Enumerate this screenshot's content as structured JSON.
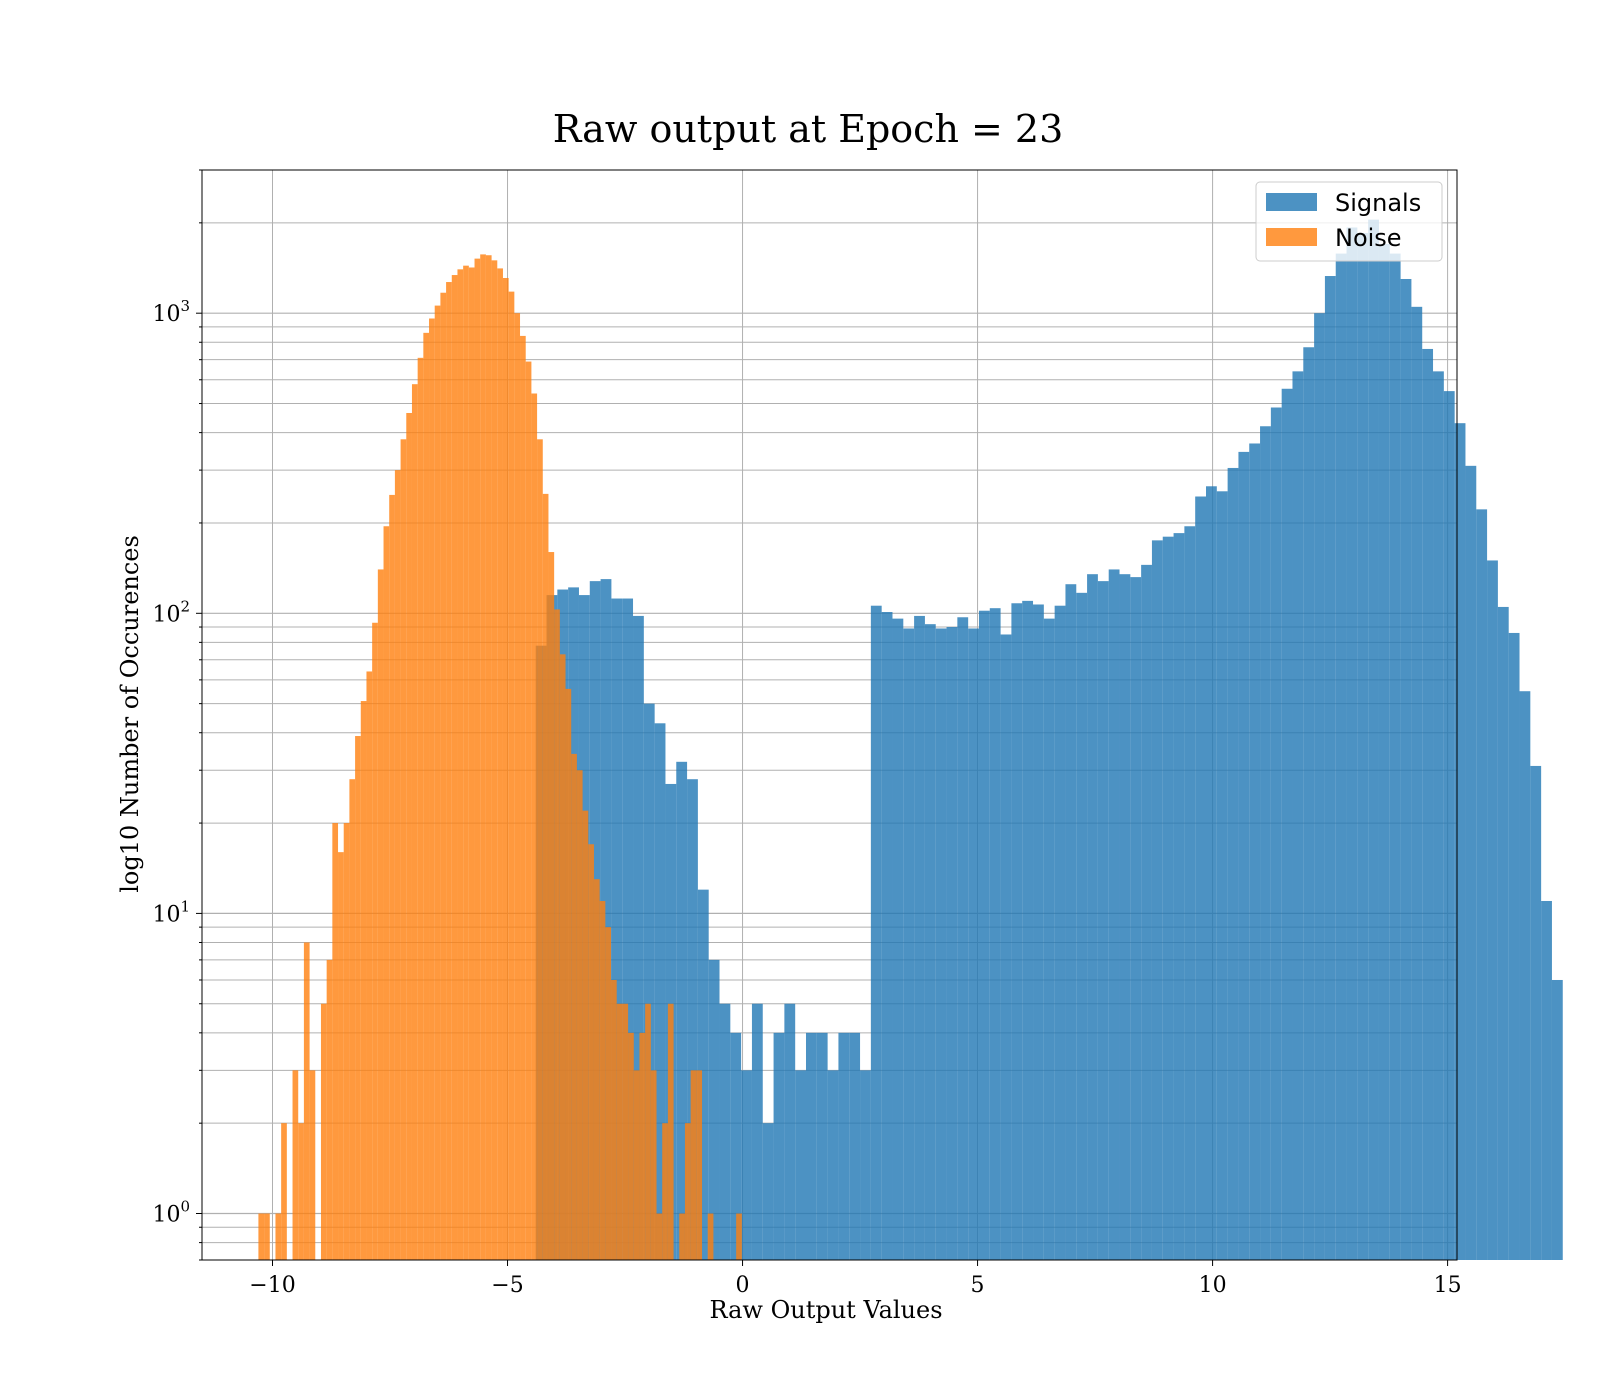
{
  "chart_data": {
    "type": "bar",
    "title": "Raw output at Epoch = 23",
    "xlabel": "Raw Output Values",
    "ylabel": "log10 Number of Occurences",
    "xlim": [
      -11.5,
      15.2
    ],
    "ylim": [
      0.7,
      3000
    ],
    "yscale": "log",
    "grid": true,
    "legend": "top-right",
    "x_ticks": [
      {
        "value": -10,
        "label": "−10"
      },
      {
        "value": -5,
        "label": "−5"
      },
      {
        "value": 0,
        "label": "0"
      },
      {
        "value": 5,
        "label": "5"
      },
      {
        "value": 10,
        "label": "10"
      },
      {
        "value": 15,
        "label": "15"
      }
    ],
    "y_ticks": [
      {
        "value": 1,
        "base": "10",
        "exp": "0"
      },
      {
        "value": 10,
        "base": "10",
        "exp": "1"
      },
      {
        "value": 100,
        "base": "10",
        "exp": "2"
      },
      {
        "value": 1000,
        "base": "10",
        "exp": "3"
      }
    ],
    "series": [
      {
        "name": "Signals",
        "color": "#1f77b4",
        "opacity": 0.8,
        "bin_start": -4.4,
        "bin_width": 0.23,
        "values": [
          78,
          115,
          120,
          122,
          115,
          128,
          130,
          112,
          112,
          98,
          50,
          43,
          27,
          32,
          28,
          12,
          7,
          5,
          4,
          3,
          5,
          2,
          4,
          5,
          3,
          4,
          4,
          3,
          4,
          4,
          3,
          106,
          101,
          96,
          89,
          98,
          92,
          89,
          90,
          97,
          89,
          102,
          104,
          85,
          108,
          110,
          107,
          96,
          106,
          125,
          117,
          135,
          128,
          140,
          135,
          132,
          145,
          175,
          180,
          185,
          195,
          245,
          265,
          255,
          305,
          345,
          368,
          420,
          485,
          560,
          640,
          770,
          1000,
          1330,
          1580,
          1930,
          1850,
          2050,
          1700,
          1580,
          1300,
          1050,
          760,
          640,
          550,
          430,
          310,
          222,
          150,
          105,
          86,
          55,
          31,
          11,
          6
        ]
      },
      {
        "name": "Noise",
        "color": "#ff7f0e",
        "opacity": 0.8,
        "bin_start": -10.3,
        "bin_width": 0.121,
        "values": [
          1,
          1,
          0,
          1,
          2,
          0,
          3,
          2,
          8,
          3,
          0,
          5,
          7,
          20,
          16,
          20,
          28,
          39,
          51,
          64,
          93,
          140,
          195,
          248,
          300,
          380,
          465,
          580,
          710,
          860,
          960,
          1060,
          1170,
          1270,
          1340,
          1400,
          1440,
          1420,
          1520,
          1570,
          1560,
          1500,
          1410,
          1310,
          1180,
          1000,
          840,
          690,
          540,
          380,
          250,
          160,
          103,
          73,
          56,
          34,
          30,
          22,
          17,
          13,
          11,
          9,
          6,
          5,
          5,
          4,
          3,
          4,
          5,
          3,
          1,
          2,
          5,
          0,
          1,
          2,
          3,
          3,
          0,
          1,
          0,
          0,
          0,
          0,
          1,
          0,
          0,
          0,
          0,
          0,
          0,
          0,
          0,
          0,
          0,
          0,
          0,
          0,
          0,
          0,
          0,
          0,
          0,
          0,
          0,
          0,
          0,
          0,
          0,
          0,
          0,
          0,
          0,
          0,
          0,
          0,
          0,
          0,
          0,
          0,
          0
        ]
      }
    ]
  }
}
